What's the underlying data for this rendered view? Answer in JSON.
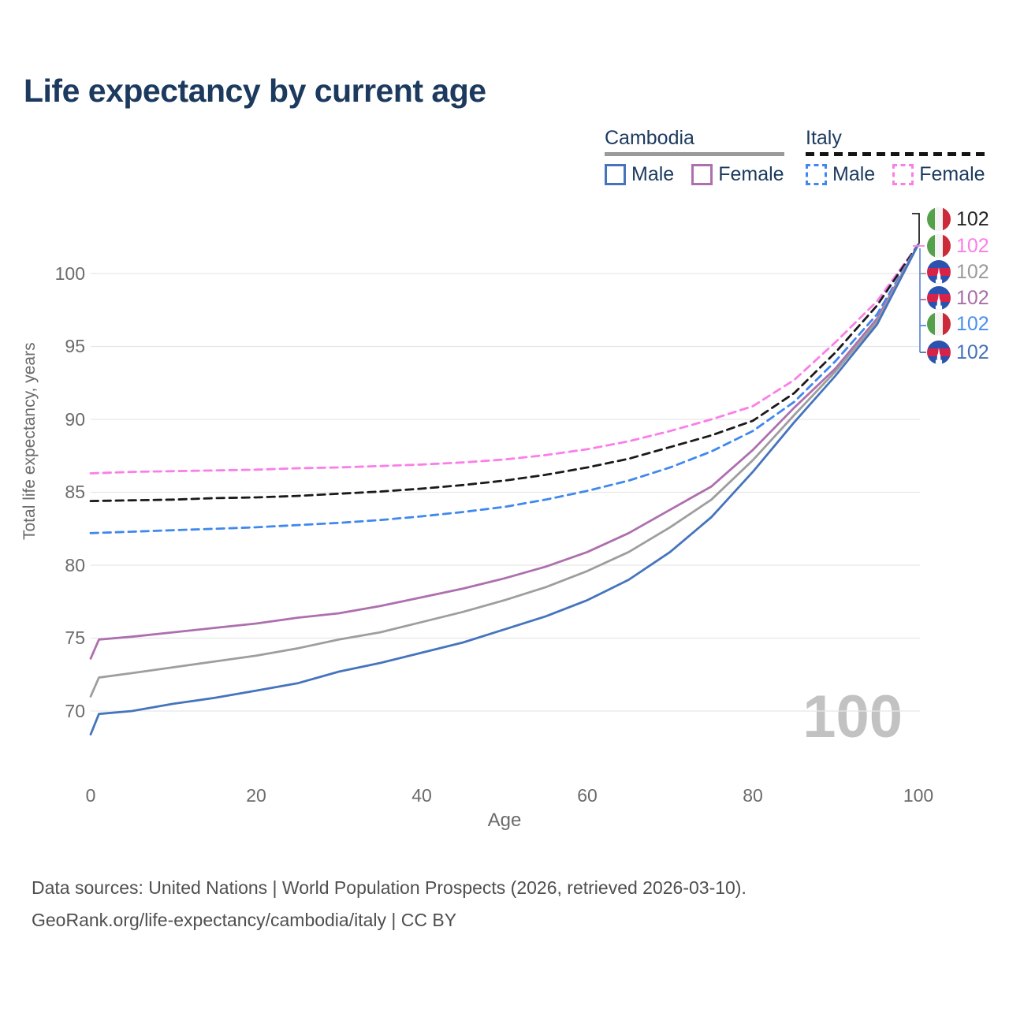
{
  "title": "Life expectancy by current age",
  "watermark_age": "100",
  "legend": {
    "groups": [
      {
        "label": "Cambodia",
        "line_style": "solid",
        "line_color": "#9a9a9a",
        "items": [
          {
            "label": "Male",
            "color": "#4574bd"
          },
          {
            "label": "Female",
            "color": "#ad6fae"
          }
        ]
      },
      {
        "label": "Italy",
        "line_style": "dashed",
        "line_color": "#141414",
        "items": [
          {
            "label": "Male",
            "color": "#3f88ef"
          },
          {
            "label": "Female",
            "color": "#fb7ee8"
          }
        ]
      }
    ]
  },
  "end_labels": [
    {
      "flag": "italy",
      "series": "italy-total",
      "value": "102",
      "color": "#222222"
    },
    {
      "flag": "italy",
      "series": "italy-female",
      "value": "102",
      "color": "#fb7ee8"
    },
    {
      "flag": "cambodia",
      "series": "cambodia-total",
      "value": "102",
      "color": "#9b9b9b"
    },
    {
      "flag": "cambodia",
      "series": "cambodia-female",
      "value": "102",
      "color": "#a76fa5"
    },
    {
      "flag": "italy",
      "series": "italy-male",
      "value": "102",
      "color": "#4a90ee"
    },
    {
      "flag": "cambodia",
      "series": "cambodia-male",
      "value": "102",
      "color": "#4472b8"
    }
  ],
  "footer": {
    "line1": "Data sources: United Nations | World Population Prospects (2026, retrieved 2026-03-10).",
    "line2": "GeoRank.org/life-expectancy/cambodia/italy | CC BY"
  },
  "chart_data": {
    "type": "line",
    "title": "Life expectancy by current age",
    "xlabel": "Age",
    "ylabel": "Total life expectancy, years",
    "xlim": [
      0,
      100
    ],
    "ylim": [
      68,
      102.5
    ],
    "xticks": [
      0,
      20,
      40,
      60,
      80,
      100
    ],
    "yticks": [
      70,
      75,
      80,
      85,
      90,
      95,
      100
    ],
    "grid": "horizontal-only",
    "legend_position": "top-right",
    "series": [
      {
        "id": "italy-female",
        "name": "Italy Female",
        "country": "Italy",
        "sex": "Female",
        "style": "dashed",
        "color": "#fb7ee8",
        "x": [
          0,
          5,
          10,
          15,
          20,
          25,
          30,
          35,
          40,
          45,
          50,
          55,
          60,
          65,
          70,
          75,
          80,
          85,
          90,
          95,
          100
        ],
        "y": [
          86.3,
          86.4,
          86.45,
          86.5,
          86.55,
          86.65,
          86.7,
          86.8,
          86.9,
          87.05,
          87.25,
          87.55,
          87.95,
          88.5,
          89.2,
          90.0,
          90.9,
          92.7,
          95.3,
          98.1,
          102
        ]
      },
      {
        "id": "italy-total",
        "name": "Italy Both sexes",
        "country": "Italy",
        "sex": "Both",
        "style": "dashed",
        "color": "#1a1a1a",
        "x": [
          0,
          5,
          10,
          15,
          20,
          25,
          30,
          35,
          40,
          45,
          50,
          55,
          60,
          65,
          70,
          75,
          80,
          85,
          90,
          95,
          100
        ],
        "y": [
          84.4,
          84.45,
          84.5,
          84.6,
          84.65,
          84.75,
          84.9,
          85.05,
          85.25,
          85.5,
          85.8,
          86.2,
          86.7,
          87.3,
          88.1,
          88.9,
          89.9,
          91.8,
          94.6,
          97.8,
          102
        ]
      },
      {
        "id": "italy-male",
        "name": "Italy Male",
        "country": "Italy",
        "sex": "Male",
        "style": "dashed",
        "color": "#3f88ef",
        "x": [
          0,
          5,
          10,
          15,
          20,
          25,
          30,
          35,
          40,
          45,
          50,
          55,
          60,
          65,
          70,
          75,
          80,
          85,
          90,
          95,
          100
        ],
        "y": [
          82.2,
          82.3,
          82.4,
          82.5,
          82.6,
          82.75,
          82.9,
          83.1,
          83.35,
          83.65,
          84.0,
          84.5,
          85.1,
          85.8,
          86.7,
          87.8,
          89.2,
          91.2,
          94.0,
          97.2,
          102
        ]
      },
      {
        "id": "cambodia-female",
        "name": "Cambodia Female",
        "country": "Cambodia",
        "sex": "Female",
        "style": "solid",
        "color": "#ad6fae",
        "x": [
          0,
          1,
          5,
          10,
          15,
          20,
          25,
          30,
          35,
          40,
          45,
          50,
          55,
          60,
          65,
          70,
          75,
          80,
          85,
          90,
          95,
          100
        ],
        "y": [
          73.6,
          74.9,
          75.1,
          75.4,
          75.7,
          76.0,
          76.4,
          76.7,
          77.2,
          77.8,
          78.4,
          79.1,
          79.9,
          80.9,
          82.2,
          83.8,
          85.4,
          87.9,
          90.8,
          93.5,
          96.9,
          102
        ]
      },
      {
        "id": "cambodia-total",
        "name": "Cambodia Both sexes",
        "country": "Cambodia",
        "sex": "Both",
        "style": "solid",
        "color": "#9e9e9e",
        "x": [
          0,
          1,
          5,
          10,
          15,
          20,
          25,
          30,
          35,
          40,
          45,
          50,
          55,
          60,
          65,
          70,
          75,
          80,
          85,
          90,
          95,
          100
        ],
        "y": [
          71.0,
          72.3,
          72.6,
          73.0,
          73.4,
          73.8,
          74.3,
          74.9,
          75.4,
          76.1,
          76.8,
          77.6,
          78.5,
          79.6,
          80.9,
          82.6,
          84.5,
          87.2,
          90.3,
          93.3,
          96.7,
          102
        ]
      },
      {
        "id": "cambodia-male",
        "name": "Cambodia Male",
        "country": "Cambodia",
        "sex": "Male",
        "style": "solid",
        "color": "#4574bd",
        "x": [
          0,
          1,
          5,
          10,
          15,
          20,
          25,
          30,
          35,
          40,
          45,
          50,
          55,
          60,
          65,
          70,
          75,
          80,
          85,
          90,
          95,
          100
        ],
        "y": [
          68.4,
          69.8,
          70.0,
          70.5,
          70.9,
          71.4,
          71.9,
          72.7,
          73.3,
          74.0,
          74.7,
          75.6,
          76.5,
          77.6,
          79.0,
          80.9,
          83.3,
          86.4,
          89.8,
          93.0,
          96.5,
          102
        ]
      }
    ],
    "end_value_age": 100,
    "end_value": 102
  }
}
